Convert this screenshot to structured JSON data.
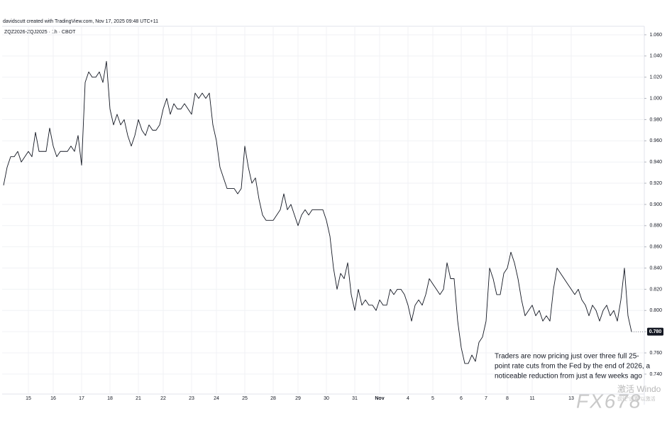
{
  "chart_data": {
    "type": "line",
    "title": "davidscutt created with TradingView.com, Nov 17, 2025 09:48 UTC+11",
    "subtitle": "ZQZ2026-ZQJ2025 · 1h · CBOT",
    "annotation": [
      "Traders are now pricing just over three full 25-",
      "point rate cuts from the Fed by the end of 2026, a",
      "noticeable reduction from just a few weeks ago"
    ],
    "last_price_label": "0.780",
    "watermarks": [
      "激活 Windo",
      "前往“设置”以激活",
      "FX678"
    ],
    "categories": [
      null,
      null,
      null,
      null,
      null,
      null,
      null,
      "15",
      null,
      null,
      null,
      null,
      null,
      null,
      "16",
      null,
      null,
      null,
      null,
      null,
      null,
      null,
      "17",
      null,
      null,
      null,
      null,
      null,
      null,
      null,
      "18",
      null,
      null,
      null,
      null,
      null,
      null,
      null,
      "21",
      null,
      null,
      null,
      null,
      null,
      null,
      "22",
      null,
      null,
      null,
      null,
      null,
      null,
      null,
      "23",
      null,
      null,
      null,
      null,
      null,
      null,
      "24",
      null,
      null,
      null,
      null,
      null,
      null,
      null,
      "25",
      null,
      null,
      null,
      null,
      null,
      null,
      null,
      "28",
      null,
      null,
      null,
      null,
      null,
      null,
      "29",
      null,
      null,
      null,
      null,
      null,
      null,
      null,
      "30",
      null,
      null,
      null,
      null,
      null,
      null,
      null,
      "31",
      null,
      null,
      null,
      null,
      null,
      null,
      "Nov",
      null,
      null,
      null,
      null,
      null,
      null,
      null,
      "4",
      null,
      null,
      null,
      null,
      null,
      null,
      "5",
      null,
      null,
      null,
      null,
      null,
      null,
      null,
      "6",
      null,
      null,
      null,
      null,
      null,
      null,
      "7",
      null,
      null,
      null,
      null,
      null,
      "8",
      null,
      null,
      null,
      null,
      null,
      null,
      "11",
      null,
      null,
      null,
      null,
      null,
      null,
      null,
      null,
      null,
      null,
      "13",
      null,
      null,
      null,
      null,
      null,
      null,
      null,
      null,
      null,
      null,
      null,
      null,
      null,
      null,
      null,
      null,
      null
    ],
    "series": [
      {
        "name": "ZQZ2026-ZQJ2025",
        "color": "#131722",
        "values": [
          0.918,
          0.935,
          0.945,
          0.945,
          0.95,
          0.94,
          0.945,
          0.95,
          0.945,
          0.968,
          0.95,
          0.95,
          0.95,
          0.972,
          0.955,
          0.945,
          0.95,
          0.95,
          0.95,
          0.955,
          0.95,
          0.965,
          0.937,
          1.015,
          1.025,
          1.02,
          1.02,
          1.025,
          1.015,
          1.035,
          0.99,
          0.975,
          0.985,
          0.975,
          0.98,
          0.965,
          0.955,
          0.965,
          0.98,
          0.97,
          0.965,
          0.975,
          0.97,
          0.97,
          0.975,
          0.99,
          1.0,
          0.985,
          0.995,
          0.99,
          0.99,
          0.995,
          0.99,
          0.985,
          1.005,
          1.0,
          1.005,
          1.0,
          1.005,
          0.975,
          0.96,
          0.935,
          0.925,
          0.915,
          0.915,
          0.915,
          0.91,
          0.915,
          0.955,
          0.935,
          0.92,
          0.925,
          0.905,
          0.89,
          0.885,
          0.885,
          0.885,
          0.89,
          0.895,
          0.91,
          0.895,
          0.9,
          0.89,
          0.88,
          0.89,
          0.895,
          0.89,
          0.895,
          0.895,
          0.895,
          0.895,
          0.885,
          0.87,
          0.84,
          0.82,
          0.835,
          0.83,
          0.845,
          0.815,
          0.8,
          0.82,
          0.805,
          0.81,
          0.805,
          0.805,
          0.8,
          0.81,
          0.805,
          0.805,
          0.82,
          0.815,
          0.82,
          0.82,
          0.815,
          0.805,
          0.79,
          0.805,
          0.81,
          0.805,
          0.815,
          0.83,
          0.825,
          0.82,
          0.815,
          0.82,
          0.845,
          0.83,
          0.83,
          0.79,
          0.765,
          0.75,
          0.75,
          0.758,
          0.752,
          0.77,
          0.775,
          0.79,
          0.84,
          0.83,
          0.815,
          0.815,
          0.835,
          0.84,
          0.855,
          0.845,
          0.83,
          0.81,
          0.795,
          0.8,
          0.805,
          0.795,
          0.8,
          0.79,
          0.795,
          0.79,
          0.82,
          0.84,
          0.835,
          0.83,
          0.825,
          0.82,
          0.815,
          0.82,
          0.81,
          0.805,
          0.795,
          0.805,
          0.8,
          0.79,
          0.8,
          0.805,
          0.795,
          0.8,
          0.79,
          0.81,
          0.84,
          0.795,
          0.78
        ]
      }
    ],
    "ylim": [
      0.7212,
      1.068
    ],
    "yticks": [
      {
        "value": 0.74,
        "label": "0.740"
      },
      {
        "value": 0.76,
        "label": "0.760"
      },
      {
        "value": 0.78,
        "label": "0.780"
      },
      {
        "value": 0.8,
        "label": "0.800"
      },
      {
        "value": 0.82,
        "label": "0.820"
      },
      {
        "value": 0.84,
        "label": "0.840"
      },
      {
        "value": 0.86,
        "label": "0.860"
      },
      {
        "value": 0.88,
        "label": "0.880"
      },
      {
        "value": 0.9,
        "label": "0.900"
      },
      {
        "value": 0.92,
        "label": "0.920"
      },
      {
        "value": 0.94,
        "label": "0.940"
      },
      {
        "value": 0.96,
        "label": "0.960"
      },
      {
        "value": 0.98,
        "label": "0.980"
      },
      {
        "value": 1.0,
        "label": "1.000"
      },
      {
        "value": 1.02,
        "label": "1.020"
      },
      {
        "value": 1.04,
        "label": "1.040"
      },
      {
        "value": 1.06,
        "label": "1.060"
      }
    ],
    "grid": true
  }
}
